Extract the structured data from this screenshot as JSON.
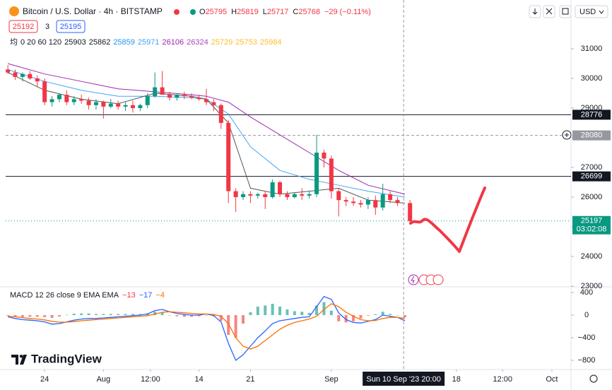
{
  "header": {
    "title": "Bitcoin / U.S. Dollar · 4h · BITSTAMP",
    "ohlc": [
      {
        "label": "O",
        "value": 25795
      },
      {
        "label": "H",
        "value": 25819
      },
      {
        "label": "L",
        "value": 25717
      },
      {
        "label": "C",
        "value": 25768
      }
    ],
    "change": "−29 (−0.11%)",
    "bid": 25192,
    "spread": 3,
    "ask": 25195,
    "currency": "USD",
    "ma_legend": {
      "symbol": "均",
      "params": "0 20 60 120",
      "values": [
        {
          "value": 25903,
          "color": "#131722"
        },
        {
          "value": 25862,
          "color": "#131722"
        },
        {
          "value": 25859,
          "color": "#2196f3"
        },
        {
          "value": 25971,
          "color": "#42a5f5"
        },
        {
          "value": 26106,
          "color": "#9c27b0"
        },
        {
          "value": 26324,
          "color": "#ab47bc"
        },
        {
          "value": 25729,
          "color": "#fbc02d"
        },
        {
          "value": 25753,
          "color": "#fbc02d"
        },
        {
          "value": 25984,
          "color": "#fbc02d"
        }
      ]
    },
    "logo": "TradingView"
  },
  "chart_data": [
    {
      "type": "candlestick",
      "up_color": "#089981",
      "down_color": "#f23645",
      "x": [
        -5,
        -4,
        -3,
        -2,
        -1,
        0,
        1,
        2,
        3,
        4,
        5,
        6,
        7,
        8,
        9,
        10,
        11,
        12,
        13,
        14,
        15,
        16,
        17,
        18,
        19,
        20,
        21,
        22,
        23,
        24,
        25,
        26,
        27,
        28,
        29,
        30,
        31,
        32,
        33,
        34,
        35,
        36,
        37,
        38,
        39,
        40,
        41,
        42,
        43,
        44,
        45,
        46,
        47,
        48,
        49.7
      ],
      "open": [
        30300,
        30200,
        30050,
        30150,
        30000,
        29900,
        29200,
        29300,
        29450,
        29200,
        29300,
        29250,
        29100,
        29200,
        29050,
        29150,
        29050,
        29100,
        29000,
        29100,
        29400,
        29700,
        29450,
        29350,
        29450,
        29400,
        29350,
        29300,
        29200,
        29100,
        28500,
        26200,
        26000,
        26100,
        26050,
        26100,
        26000,
        26500,
        26100,
        26000,
        26100,
        26050,
        26100,
        27500,
        27300,
        26200,
        25900,
        25850,
        25800,
        25750,
        25900,
        25650,
        26100,
        25900,
        25800
      ],
      "high": [
        30450,
        30300,
        30200,
        30250,
        30100,
        30000,
        29400,
        29500,
        29600,
        29400,
        29450,
        29350,
        29300,
        29250,
        29300,
        29250,
        29200,
        29250,
        29150,
        29500,
        30200,
        30250,
        29550,
        29500,
        29550,
        29500,
        29450,
        29650,
        29300,
        29150,
        28600,
        26300,
        26200,
        26200,
        26150,
        26200,
        26600,
        26550,
        26200,
        26150,
        26300,
        26200,
        28100,
        27600,
        27400,
        26300,
        26000,
        26000,
        25900,
        26000,
        26050,
        26450,
        26200,
        26000,
        25900
      ],
      "low": [
        30150,
        29950,
        29900,
        29950,
        29700,
        29100,
        29050,
        29200,
        29100,
        29100,
        29150,
        28950,
        28950,
        28650,
        29000,
        28950,
        28900,
        28850,
        28900,
        29000,
        29350,
        29500,
        29250,
        29250,
        29300,
        29300,
        29250,
        29100,
        28900,
        28300,
        25800,
        25500,
        25900,
        25800,
        25950,
        25600,
        25950,
        26000,
        25900,
        25950,
        25900,
        25950,
        26000,
        27000,
        25950,
        25350,
        25700,
        25700,
        25650,
        25600,
        25400,
        25550,
        25800,
        25700,
        25150
      ],
      "close": [
        30200,
        30050,
        30150,
        30000,
        29900,
        29200,
        29300,
        29450,
        29200,
        29300,
        29250,
        29100,
        29200,
        29050,
        29150,
        29050,
        29100,
        29000,
        29100,
        29400,
        29700,
        29450,
        29350,
        29450,
        29400,
        29350,
        29300,
        29200,
        29100,
        28500,
        26200,
        26000,
        26100,
        26050,
        26100,
        26000,
        26500,
        26100,
        26000,
        26100,
        26050,
        26100,
        27500,
        27300,
        26200,
        25900,
        25850,
        25800,
        25750,
        25900,
        25650,
        26100,
        25900,
        25800,
        25192
      ],
      "lines": [
        {
          "color": "#9c27b0",
          "x": [
            -5,
            0,
            5,
            10,
            15,
            20,
            22,
            25,
            28,
            32,
            36,
            40,
            44,
            49
          ],
          "values": [
            30500,
            30150,
            29900,
            29650,
            29550,
            29450,
            29400,
            29200,
            28700,
            28100,
            27500,
            26900,
            26400,
            26100
          ]
        },
        {
          "color": "#42a5f5",
          "x": [
            -5,
            0,
            5,
            10,
            15,
            20,
            22,
            25,
            28,
            32,
            36,
            40,
            44,
            49
          ],
          "values": [
            30300,
            29900,
            29600,
            29400,
            29400,
            29350,
            29300,
            28800,
            27700,
            26900,
            26600,
            26400,
            26200,
            26000
          ]
        },
        {
          "color": "#555555",
          "x": [
            -5,
            0,
            5,
            10,
            15,
            20,
            22,
            25,
            28,
            32,
            36,
            40,
            44,
            49
          ],
          "values": [
            30200,
            29600,
            29300,
            29150,
            29500,
            29400,
            29300,
            28500,
            26300,
            26100,
            26200,
            26300,
            25900,
            25800
          ]
        }
      ],
      "levels": [
        {
          "value": 28776,
          "color": "#131722",
          "dash": "none"
        },
        {
          "value": 28080,
          "color": "#9598a1",
          "dash": "4 3"
        },
        {
          "value": 26699,
          "color": "#131722",
          "dash": "none"
        },
        {
          "value": 25197,
          "color": "#089981",
          "dash": "1 3",
          "countdown": "03:02:08"
        }
      ],
      "crosshair": {
        "x": 48.83,
        "label": "Sun 10 Sep '23 20:00"
      },
      "xlim": [
        -5.3,
        71.6
      ],
      "xticks": [
        {
          "value": 0,
          "label": "24"
        },
        {
          "value": 8,
          "label": "Aug"
        },
        {
          "value": 14.4,
          "label": "12:00"
        },
        {
          "value": 21,
          "label": "14"
        },
        {
          "value": 28,
          "label": "21"
        },
        {
          "value": 39,
          "label": "Sep"
        },
        {
          "value": 56,
          "label": "18"
        },
        {
          "value": 62.3,
          "label": "12:00"
        },
        {
          "value": 69,
          "label": "Oct"
        }
      ],
      "ylim": [
        23000,
        31976
      ],
      "yticks": [
        23000,
        24000,
        25000,
        26000,
        27000,
        28000,
        29000,
        30000,
        31000
      ]
    },
    {
      "type": "macd",
      "title": "MACD 12 26 close 9 EMA EMA",
      "legend": [
        {
          "value": -13,
          "label": "−13",
          "color": "#f23645"
        },
        {
          "value": -17,
          "label": "−17",
          "color": "#2962ff"
        },
        {
          "value": -4,
          "label": "−4",
          "color": "#ff6d00"
        }
      ],
      "x": [
        -5,
        -4,
        -3,
        -2,
        -1,
        0,
        1,
        2,
        3,
        4,
        5,
        6,
        7,
        8,
        9,
        10,
        11,
        12,
        13,
        14,
        15,
        16,
        17,
        18,
        19,
        20,
        21,
        22,
        23,
        24,
        25,
        26,
        27,
        28,
        29,
        30,
        31,
        32,
        33,
        34,
        35,
        36,
        37,
        38,
        39,
        40,
        41,
        42,
        43,
        44,
        45,
        46,
        47,
        48,
        49
      ],
      "macd": [
        -30,
        -60,
        -80,
        -90,
        -100,
        -120,
        -160,
        -150,
        -120,
        -90,
        -70,
        -60,
        -60,
        -50,
        -40,
        -30,
        -20,
        -10,
        0,
        20,
        80,
        100,
        60,
        30,
        10,
        0,
        0,
        20,
        -10,
        -120,
        -500,
        -800,
        -700,
        -550,
        -400,
        -280,
        -150,
        -100,
        -80,
        -60,
        -40,
        -30,
        150,
        330,
        280,
        40,
        -80,
        -130,
        -140,
        -110,
        -80,
        0,
        -20,
        -40,
        -100
      ],
      "signal": [
        -20,
        -30,
        -45,
        -60,
        -70,
        -85,
        -110,
        -125,
        -125,
        -115,
        -100,
        -90,
        -80,
        -70,
        -60,
        -50,
        -40,
        -30,
        -20,
        -10,
        20,
        50,
        60,
        50,
        40,
        30,
        20,
        20,
        10,
        -20,
        -150,
        -400,
        -550,
        -600,
        -550,
        -450,
        -350,
        -250,
        -180,
        -130,
        -100,
        -70,
        -20,
        100,
        200,
        150,
        50,
        -20,
        -80,
        -100,
        -95,
        -60,
        -40,
        -40,
        -60
      ],
      "hist": [
        -10,
        -30,
        -35,
        -30,
        -30,
        -35,
        -50,
        -25,
        5,
        25,
        30,
        30,
        20,
        20,
        20,
        20,
        20,
        20,
        20,
        30,
        60,
        50,
        0,
        -20,
        -30,
        -30,
        -20,
        0,
        -20,
        -100,
        -350,
        -400,
        -150,
        50,
        150,
        170,
        200,
        150,
        100,
        70,
        60,
        40,
        170,
        230,
        80,
        -110,
        -130,
        -110,
        -60,
        -10,
        15,
        60,
        20,
        0,
        -40
      ],
      "macd_color": "#2962ff",
      "signal_color": "#ff6d00",
      "hist_up": "#26a69a",
      "hist_down": "#ef5350",
      "xlim": [
        -5.3,
        71.6
      ],
      "ylim": [
        -925,
        475
      ],
      "yticks": [
        {
          "value": 400,
          "label": "400"
        },
        0,
        {
          "value": -400,
          "label": "−400"
        },
        {
          "value": -800,
          "label": "−800"
        }
      ]
    }
  ]
}
